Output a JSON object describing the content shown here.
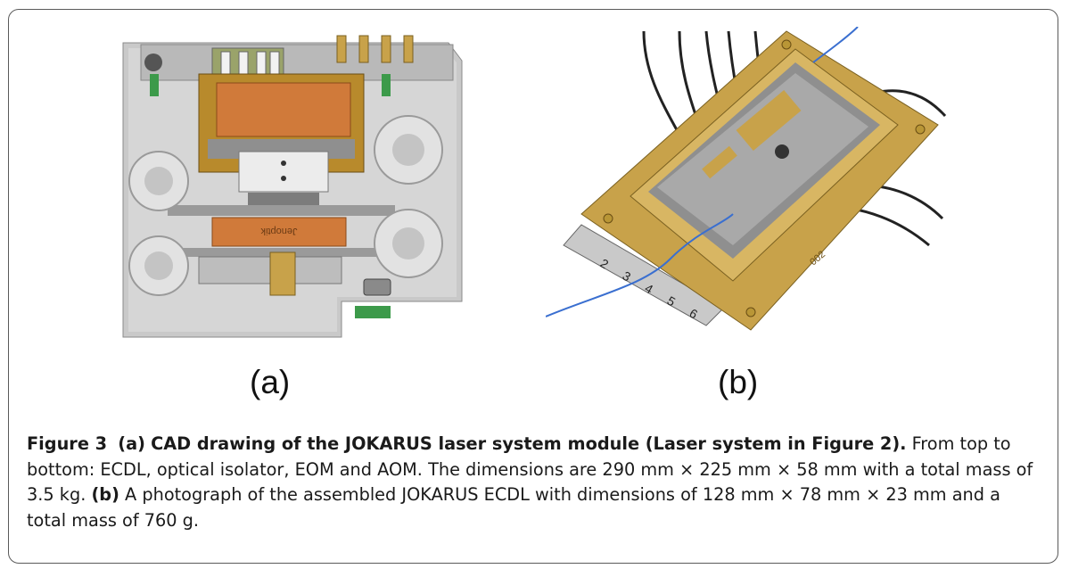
{
  "figure": {
    "label_a": "(a)",
    "label_b": "(b)",
    "caption_figure_number": "Figure 3",
    "caption_part_a_label": "(a)",
    "caption_part_a_title": "CAD drawing of the JOKARUS laser system module (Laser system in Figure 2).",
    "caption_part_a_body": "From top to bottom: ECDL, optical isolator, EOM and AOM. The dimensions are 290 mm × 225 mm × 58 mm with a total mass of 3.5 kg.",
    "caption_part_b_label": "(b)",
    "caption_part_b_body": "A photograph of the assembled JOKARUS ECDL with dimensions of 128 mm × 78 mm × 23 mm and a total mass of 760 g.",
    "module_inscription": "Jenoptik",
    "ruler_numbers": [
      "2",
      "3",
      "4",
      "5",
      "6"
    ],
    "plate_marking": "002"
  },
  "colors": {
    "copper": "#d07a3a",
    "brass": "#c8a24a",
    "housing_gray": "#c9c9c9",
    "fiber_blue": "#3a6fd0",
    "border": "#5a5a5a"
  }
}
